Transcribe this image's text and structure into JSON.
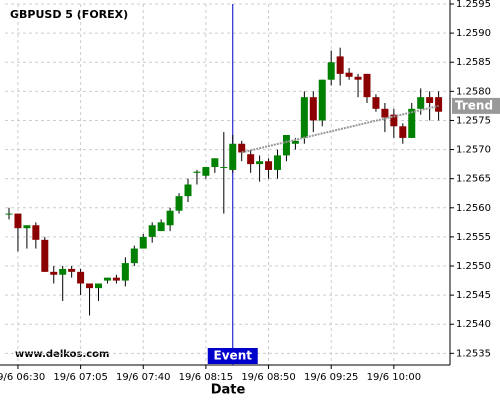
{
  "chart_data": {
    "type": "candlestick",
    "title": "GBPUSD 5 (FOREX)",
    "watermark": "www.delkos.com",
    "x_label": "Date",
    "categories": [
      null,
      "19/6 06:30",
      null,
      null,
      null,
      null,
      null,
      null,
      "19/6 07:05",
      null,
      null,
      null,
      null,
      null,
      null,
      "19/6 07:40",
      null,
      null,
      null,
      null,
      null,
      null,
      "19/6 08:15",
      null,
      null,
      null,
      null,
      null,
      null,
      "19/6 08:50",
      null,
      null,
      null,
      null,
      null,
      null,
      "19/6 09:25",
      null,
      null,
      null,
      null,
      null,
      null,
      "19/6 10:00",
      null,
      null,
      null,
      null,
      null
    ],
    "open": [
      1.2559,
      1.2559,
      1.25565,
      1.2557,
      1.25545,
      1.2549,
      1.25485,
      1.25495,
      1.2549,
      1.2547,
      1.25462,
      1.25475,
      1.2548,
      1.25475,
      1.25505,
      1.2553,
      1.2555,
      1.2556,
      1.2557,
      1.25595,
      1.2562,
      1.2566,
      1.25655,
      1.2567,
      1.2567,
      1.25665,
      1.2571,
      1.25692,
      1.25675,
      1.2568,
      1.25665,
      1.2569,
      1.2571,
      1.2572,
      1.2579,
      1.2575,
      1.2582,
      1.2586,
      1.25832,
      1.25825,
      1.2583,
      1.2579,
      1.2577,
      1.2576,
      1.2574,
      1.2572,
      1.2577,
      1.2579,
      1.2579
    ],
    "high": [
      1.256,
      1.2559,
      1.2557,
      1.25575,
      1.2555,
      1.255,
      1.255,
      1.255,
      1.25495,
      1.2547,
      1.2547,
      1.2548,
      1.25485,
      1.25515,
      1.25535,
      1.25555,
      1.25575,
      1.2558,
      1.256,
      1.25625,
      1.2565,
      1.25665,
      1.2567,
      1.25685,
      1.2573,
      1.25725,
      1.25715,
      1.257,
      1.2569,
      1.25685,
      1.257,
      1.25725,
      1.2572,
      1.258,
      1.258,
      1.2582,
      1.2587,
      1.25875,
      1.2584,
      1.2583,
      1.2583,
      1.25795,
      1.2578,
      1.2577,
      1.25745,
      1.2578,
      1.25805,
      1.258,
      1.258
    ],
    "low": [
      1.2558,
      1.25525,
      1.2553,
      1.2553,
      1.2549,
      1.2547,
      1.2544,
      1.2548,
      1.2545,
      1.25415,
      1.2544,
      1.2547,
      1.2547,
      1.25465,
      1.255,
      1.2553,
      1.2554,
      1.2556,
      1.2556,
      1.2559,
      1.2561,
      1.2564,
      1.2565,
      1.2566,
      1.2559,
      1.2566,
      1.2568,
      1.2566,
      1.25645,
      1.2565,
      1.2565,
      1.2568,
      1.257,
      1.2571,
      1.2573,
      1.2574,
      1.2581,
      1.2581,
      1.2582,
      1.2579,
      1.2578,
      1.25765,
      1.2573,
      1.2572,
      1.2571,
      1.2572,
      1.2576,
      1.2575,
      1.2575
    ],
    "close": [
      1.2559,
      1.25565,
      1.2557,
      1.25545,
      1.2549,
      1.25485,
      1.25495,
      1.2549,
      1.2547,
      1.25462,
      1.2547,
      1.2548,
      1.25475,
      1.25505,
      1.2553,
      1.2555,
      1.2557,
      1.25575,
      1.25595,
      1.2562,
      1.2564,
      1.25662,
      1.2567,
      1.25685,
      1.2567,
      1.2571,
      1.25695,
      1.25675,
      1.2568,
      1.25665,
      1.2569,
      1.25725,
      1.25715,
      1.2579,
      1.2575,
      1.2582,
      1.2585,
      1.2583,
      1.25825,
      1.2582,
      1.2579,
      1.2577,
      1.25755,
      1.2574,
      1.2572,
      1.2577,
      1.2579,
      1.2578,
      1.25765
    ],
    "up_color": "#008000",
    "down_color": "#8b0000",
    "ylim": [
      1.2533,
      1.2595
    ],
    "yticks": [
      1.2535,
      {
        "value": 1.254,
        "label": "1.2540"
      },
      1.2545,
      {
        "value": 1.255,
        "label": "1.2550"
      },
      1.2555,
      {
        "value": 1.256,
        "label": "1.2560"
      },
      1.2565,
      {
        "value": 1.257,
        "label": "1.2570"
      },
      1.2575,
      {
        "value": 1.258,
        "label": "1.2580"
      },
      1.2585,
      {
        "value": 1.259,
        "label": "1.2590"
      },
      1.2595
    ],
    "grid": true,
    "event": {
      "text": "Event",
      "index": 25,
      "color": "#0000cc"
    },
    "trend": {
      "text": "Trend",
      "start_index": 26,
      "start_value": 1.25695,
      "end_index": 48,
      "end_value": 1.25775,
      "color": "#999999"
    }
  }
}
